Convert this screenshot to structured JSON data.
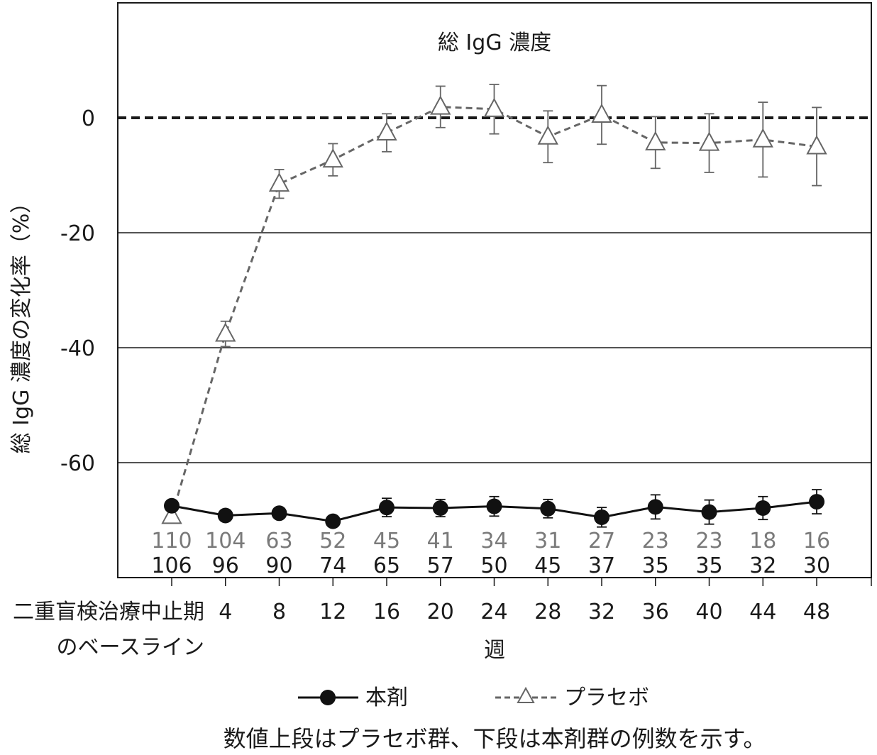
{
  "chart_data": {
    "type": "line",
    "title": "総 IgG 濃度",
    "ylabel": "総 IgG 濃度の変化率（%）",
    "xlabel": "週",
    "ylim": [
      -80,
      20
    ],
    "yticks": [
      0,
      -20,
      -40,
      -60
    ],
    "baseline_label_line1": "二重盲検治療中止期",
    "baseline_label_line2": "のベースライン",
    "categories": [
      "二重盲検治療中止期のベースライン",
      "4",
      "8",
      "12",
      "16",
      "20",
      "24",
      "28",
      "32",
      "36",
      "40",
      "44",
      "48"
    ],
    "x_tick_labels": [
      "4",
      "8",
      "12",
      "16",
      "20",
      "24",
      "28",
      "32",
      "36",
      "40",
      "44",
      "48"
    ],
    "series": [
      {
        "name": "本剤",
        "color": "#111111",
        "style": "solid",
        "marker": "filled-circle",
        "values": [
          -67.5,
          -69.2,
          -68.8,
          -70.2,
          -67.8,
          -67.9,
          -67.6,
          -68.0,
          -69.5,
          -67.7,
          -68.6,
          -67.9,
          -66.8
        ],
        "error": [
          0,
          0,
          0,
          0,
          1.6,
          1.5,
          1.7,
          1.6,
          1.7,
          2.1,
          2.1,
          2.0,
          2.1
        ],
        "n": [
          "106",
          "96",
          "90",
          "74",
          "65",
          "57",
          "50",
          "45",
          "37",
          "35",
          "35",
          "32",
          "30"
        ]
      },
      {
        "name": "プラセボ",
        "color": "#666666",
        "style": "dashed",
        "marker": "open-triangle",
        "values": [
          -69.3,
          -37.6,
          -11.5,
          -7.3,
          -2.6,
          1.9,
          1.5,
          -3.3,
          0.5,
          -4.3,
          -4.4,
          -3.8,
          -5.0
        ],
        "error": [
          0,
          2.2,
          2.5,
          2.8,
          3.3,
          3.6,
          4.3,
          4.5,
          5.1,
          4.5,
          5.1,
          6.5,
          6.8
        ],
        "n": [
          "110",
          "104",
          "63",
          "52",
          "45",
          "41",
          "34",
          "31",
          "27",
          "23",
          "23",
          "18",
          "16"
        ]
      }
    ],
    "reference_line": 0,
    "grid": true,
    "legend_position": "bottom-center"
  },
  "footnote": "数値上段はプラセボ群、下段は本剤群の例数を示す。"
}
